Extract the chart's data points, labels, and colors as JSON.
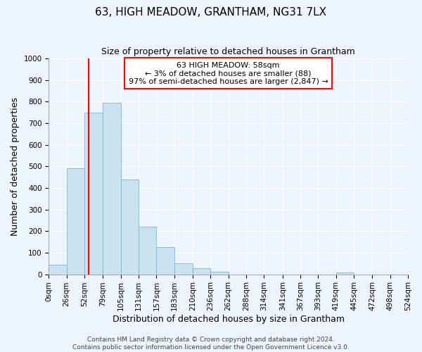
{
  "title": "63, HIGH MEADOW, GRANTHAM, NG31 7LX",
  "subtitle": "Size of property relative to detached houses in Grantham",
  "xlabel": "Distribution of detached houses by size in Grantham",
  "ylabel": "Number of detached properties",
  "bin_edges": [
    0,
    26,
    52,
    79,
    105,
    131,
    157,
    183,
    210,
    236,
    262,
    288,
    314,
    341,
    367,
    393,
    419,
    445,
    472,
    498,
    524
  ],
  "bin_labels": [
    "0sqm",
    "26sqm",
    "52sqm",
    "79sqm",
    "105sqm",
    "131sqm",
    "157sqm",
    "183sqm",
    "210sqm",
    "236sqm",
    "262sqm",
    "288sqm",
    "314sqm",
    "341sqm",
    "367sqm",
    "393sqm",
    "419sqm",
    "445sqm",
    "472sqm",
    "498sqm",
    "524sqm"
  ],
  "counts": [
    45,
    490,
    750,
    795,
    438,
    220,
    125,
    52,
    28,
    12,
    0,
    0,
    0,
    0,
    0,
    0,
    8,
    0,
    0,
    0
  ],
  "bar_color": "#c9e4f0",
  "bar_edge_color": "#7ab8d4",
  "property_line_x": 58,
  "property_line_color": "red",
  "annotation_line1": "63 HIGH MEADOW: 58sqm",
  "annotation_line2": "← 3% of detached houses are smaller (88)",
  "annotation_line3": "97% of semi-detached houses are larger (2,847) →",
  "ylim": [
    0,
    1000
  ],
  "yticks": [
    0,
    100,
    200,
    300,
    400,
    500,
    600,
    700,
    800,
    900,
    1000
  ],
  "footer_line1": "Contains HM Land Registry data © Crown copyright and database right 2024.",
  "footer_line2": "Contains public sector information licensed under the Open Government Licence v3.0.",
  "background_color": "#eef4fb",
  "grid_color": "#ffffff",
  "title_fontsize": 11,
  "subtitle_fontsize": 9,
  "axis_label_fontsize": 9,
  "tick_fontsize": 7.5,
  "footer_fontsize": 6.5
}
